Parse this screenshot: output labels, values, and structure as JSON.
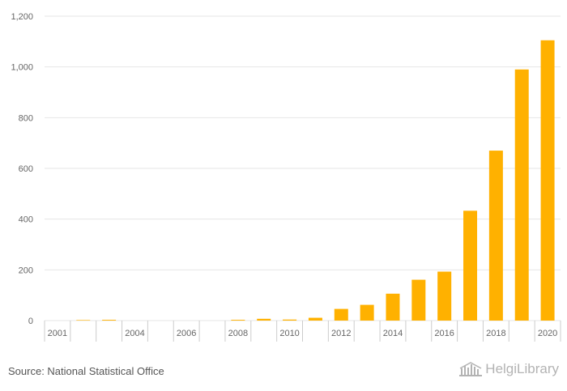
{
  "chart_data": {
    "type": "bar",
    "title": "",
    "xlabel": "",
    "ylabel": "",
    "ylim": [
      0,
      1200
    ],
    "yticks": [
      0,
      200,
      400,
      600,
      800,
      1000,
      1200
    ],
    "ytick_labels": [
      "0",
      "200",
      "400",
      "600",
      "800",
      "1,000",
      "1,200"
    ],
    "categories": [
      "2001",
      "2002",
      "2003",
      "2004",
      "2005",
      "2006",
      "2007",
      "2008",
      "2009",
      "2010",
      "2011",
      "2012",
      "2013",
      "2014",
      "2015",
      "2016",
      "2017",
      "2018",
      "2019",
      "2020"
    ],
    "xtick_labels": [
      "2001",
      "",
      "",
      "2004",
      "",
      "2006",
      "",
      "2008",
      "",
      "2010",
      "",
      "2012",
      "",
      "2014",
      "",
      "2016",
      "",
      "2018",
      "",
      "2020"
    ],
    "values": [
      0,
      2,
      3,
      0,
      0,
      0,
      0,
      3,
      7,
      4,
      11,
      46,
      62,
      106,
      161,
      193,
      433,
      670,
      990,
      1105
    ],
    "bar_color": "#ffb100",
    "grid": true
  },
  "footer": {
    "source": "Source: National Statistical Office",
    "brand": "HelgiLibrary",
    "brand_icon": "library-building-icon"
  }
}
